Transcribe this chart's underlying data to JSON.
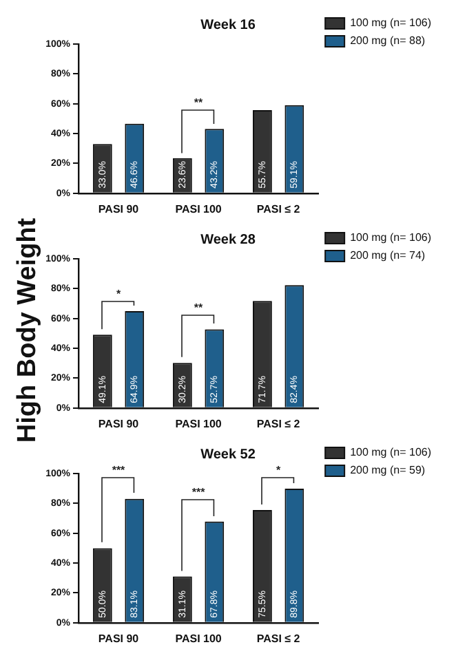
{
  "chart_data": [
    {
      "type": "bar",
      "title": "Week 16",
      "categories": [
        "PASI 90",
        "PASI 100",
        "PASI ≤ 2"
      ],
      "series": [
        {
          "name": "100 mg (n= 106)",
          "color": "#333333",
          "values": [
            33.0,
            23.6,
            55.7
          ],
          "value_labels": [
            "33.0%",
            "23.6%",
            "55.7%"
          ]
        },
        {
          "name": "200 mg (n= 88)",
          "color": "#1f5f8c",
          "values": [
            46.6,
            43.2,
            59.1
          ],
          "value_labels": [
            "46.6%",
            "43.2%",
            "59.1%"
          ]
        }
      ],
      "ylim": [
        0,
        100
      ],
      "yticks": [
        {
          "value": 0,
          "label": "0%"
        },
        {
          "value": 20,
          "label": "20%"
        },
        {
          "value": 40,
          "label": "40%"
        },
        {
          "value": 60,
          "label": "60%"
        },
        {
          "value": 80,
          "label": "80%"
        },
        {
          "value": 100,
          "label": "100%"
        }
      ],
      "annotations": [
        "**"
      ],
      "grid": false,
      "legend": "top right"
    },
    {
      "type": "bar",
      "title": "Week 28",
      "ylabel": "High Body Weight",
      "categories": [
        "PASI 90",
        "PASI 100",
        "PASI ≤ 2"
      ],
      "series": [
        {
          "name": "100 mg (n= 106)",
          "color": "#333333",
          "values": [
            49.1,
            30.2,
            71.7
          ],
          "value_labels": [
            "49.1%",
            "30.2%",
            "71.7%"
          ]
        },
        {
          "name": "200 mg (n= 74)",
          "color": "#1f5f8c",
          "values": [
            64.9,
            52.7,
            82.4
          ],
          "value_labels": [
            "64.9%",
            "52.7%",
            "82.4%"
          ]
        }
      ],
      "ylim": [
        0,
        100
      ],
      "yticks": [
        {
          "value": 0,
          "label": "0%"
        },
        {
          "value": 20,
          "label": "20%"
        },
        {
          "value": 40,
          "label": "40%"
        },
        {
          "value": 60,
          "label": "60%"
        },
        {
          "value": 80,
          "label": "80%"
        },
        {
          "value": 100,
          "label": "100%"
        }
      ],
      "annotations": [
        "*",
        "**"
      ],
      "grid": false,
      "legend": "top right"
    },
    {
      "type": "bar",
      "title": "Week 52",
      "categories": [
        "PASI 90",
        "PASI 100",
        "PASI ≤ 2"
      ],
      "series": [
        {
          "name": "100 mg (n= 106)",
          "color": "#333333",
          "values": [
            50.0,
            31.1,
            75.5
          ],
          "value_labels": [
            "50.0%",
            "31.1%",
            "75.5%"
          ]
        },
        {
          "name": "200 mg (n= 59)",
          "color": "#1f5f8c",
          "values": [
            83.1,
            67.8,
            89.8
          ],
          "value_labels": [
            "83.1%",
            "67.8%",
            "89.8%"
          ]
        }
      ],
      "ylim": [
        0,
        100
      ],
      "yticks": [
        {
          "value": 0,
          "label": "0%"
        },
        {
          "value": 20,
          "label": "20%"
        },
        {
          "value": 40,
          "label": "40%"
        },
        {
          "value": 60,
          "label": "60%"
        },
        {
          "value": 80,
          "label": "80%"
        },
        {
          "value": 100,
          "label": "100%"
        }
      ],
      "annotations": [
        "***",
        "***",
        "*"
      ],
      "grid": false,
      "legend": "top right"
    }
  ]
}
